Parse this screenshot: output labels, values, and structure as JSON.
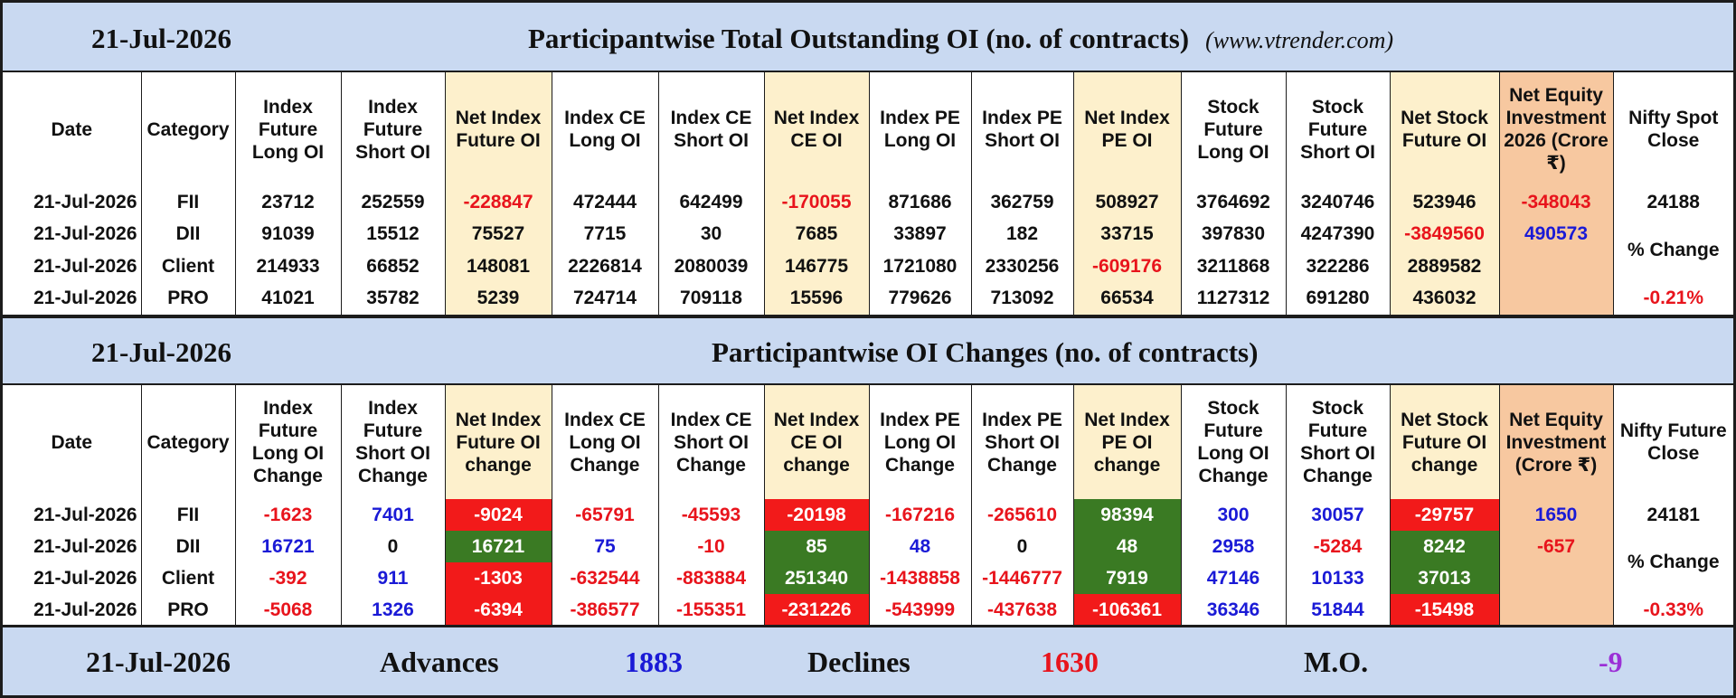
{
  "section1": {
    "date": "21-Jul-2026",
    "title": "Participantwise Total Outstanding OI (no. of contracts)",
    "url": "(www.vtrender.com)",
    "headers": [
      "Date",
      "Category",
      "Index Future Long OI",
      "Index Future Short OI",
      "Net Index Future OI",
      "Index CE Long OI",
      "Index CE Short OI",
      "Net Index CE OI",
      "Index PE Long OI",
      "Index PE Short OI",
      "Net Index PE OI",
      "Stock Future Long OI",
      "Stock Future Short OI",
      "Net Stock Future OI",
      "Net Equity Investment 2026 (Crore ₹)",
      "Nifty Spot Close"
    ],
    "rows": [
      {
        "date": "21-Jul-2026",
        "category": "FII",
        "values": [
          "23712",
          "252559",
          "-228847",
          "472444",
          "642499",
          "-170055",
          "871686",
          "362759",
          "508927",
          "3764692",
          "3240746",
          "523946"
        ]
      },
      {
        "date": "21-Jul-2026",
        "category": "DII",
        "values": [
          "91039",
          "15512",
          "75527",
          "7715",
          "30",
          "7685",
          "33897",
          "182",
          "33715",
          "397830",
          "4247390",
          "-3849560"
        ]
      },
      {
        "date": "21-Jul-2026",
        "category": "Client",
        "values": [
          "214933",
          "66852",
          "148081",
          "2226814",
          "2080039",
          "146775",
          "1721080",
          "2330256",
          "-609176",
          "3211868",
          "322286",
          "2889582"
        ]
      },
      {
        "date": "21-Jul-2026",
        "category": "PRO",
        "values": [
          "41021",
          "35782",
          "5239",
          "724714",
          "709118",
          "15596",
          "779626",
          "713092",
          "66534",
          "1127312",
          "691280",
          "436032"
        ]
      }
    ],
    "equity": [
      "-348043",
      "490573"
    ],
    "nifty_close": "24188",
    "pct_label": "% Change",
    "pct_value": "-0.21%"
  },
  "section2": {
    "date": "21-Jul-2026",
    "title": "Participantwise OI Changes (no. of contracts)",
    "headers": [
      "Date",
      "Category",
      "Index Future Long OI Change",
      "Index Future Short OI Change",
      "Net Index Future OI change",
      "Index CE Long OI Change",
      "Index CE Short OI Change",
      "Net Index CE OI change",
      "Index PE Long OI Change",
      "Index PE Short OI Change",
      "Net Index PE OI change",
      "Stock Future Long OI Change",
      "Stock Future Short OI Change",
      "Net Stock Future OI change",
      "Net Equity Investment (Crore ₹)",
      "Nifty Future Close"
    ],
    "rows": [
      {
        "date": "21-Jul-2026",
        "category": "FII",
        "values": [
          "-1623",
          "7401",
          "-9024",
          "-65791",
          "-45593",
          "-20198",
          "-167216",
          "-265610",
          "98394",
          "300",
          "30057",
          "-29757"
        ]
      },
      {
        "date": "21-Jul-2026",
        "category": "DII",
        "values": [
          "16721",
          "0",
          "16721",
          "75",
          "-10",
          "85",
          "48",
          "0",
          "48",
          "2958",
          "-5284",
          "8242"
        ]
      },
      {
        "date": "21-Jul-2026",
        "category": "Client",
        "values": [
          "-392",
          "911",
          "-1303",
          "-632544",
          "-883884",
          "251340",
          "-1438858",
          "-1446777",
          "7919",
          "47146",
          "10133",
          "37013"
        ]
      },
      {
        "date": "21-Jul-2026",
        "category": "PRO",
        "values": [
          "-5068",
          "1326",
          "-6394",
          "-386577",
          "-155351",
          "-231226",
          "-543999",
          "-437638",
          "-106361",
          "36346",
          "51844",
          "-15498"
        ]
      }
    ],
    "equity": [
      "1650",
      "-657"
    ],
    "nifty_close": "24181",
    "pct_label": "% Change",
    "pct_value": "-0.33%"
  },
  "footer": {
    "date": "21-Jul-2026",
    "advances_label": "Advances",
    "advances": "1883",
    "declines_label": "Declines",
    "declines": "1630",
    "mo_label": "M.O.",
    "mo": "-9"
  },
  "colors": {
    "negative_text": "#e8141c",
    "positive_text": "#1a1ad6",
    "negative_fill": "#f21a1a",
    "positive_fill": "#3a7a23",
    "header_band": "#c9d9f1",
    "net_column": "#fdf0cc",
    "equity_column": "#f7c8a0",
    "mo_color": "#9b2fd6"
  }
}
